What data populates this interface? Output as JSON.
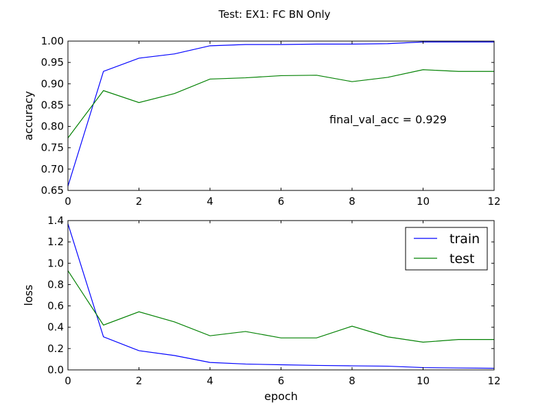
{
  "figure": {
    "title": "Test: EX1: FC BN Only"
  },
  "chart_data": [
    {
      "type": "line",
      "title": "",
      "xlabel": "",
      "ylabel": "accuracy",
      "xlim": [
        0,
        12
      ],
      "ylim": [
        0.65,
        1.0
      ],
      "xticks": [
        0,
        2,
        4,
        6,
        8,
        10,
        12
      ],
      "yticks": [
        0.65,
        0.7,
        0.75,
        0.8,
        0.85,
        0.9,
        0.95,
        1.0
      ],
      "xtick_labels": [
        "0",
        "2",
        "4",
        "6",
        "8",
        "10",
        "12"
      ],
      "ytick_labels": [
        "0.65",
        "0.70",
        "0.75",
        "0.80",
        "0.85",
        "0.90",
        "0.95",
        "1.00"
      ],
      "grid": false,
      "annotation": "final_val_acc = 0.929",
      "x": [
        0,
        1,
        2,
        3,
        4,
        5,
        6,
        7,
        8,
        9,
        10,
        11,
        12
      ],
      "series": [
        {
          "color": "#0000ff",
          "values": [
            0.66,
            0.929,
            0.96,
            0.97,
            0.989,
            0.992,
            0.992,
            0.993,
            0.993,
            0.994,
            0.998,
            0.998,
            0.998
          ]
        },
        {
          "color": "#008000",
          "values": [
            0.773,
            0.884,
            0.856,
            0.877,
            0.911,
            0.914,
            0.919,
            0.92,
            0.905,
            0.915,
            0.933,
            0.929,
            0.929
          ]
        }
      ]
    },
    {
      "type": "line",
      "title": "",
      "xlabel": "epoch",
      "ylabel": "loss",
      "xlim": [
        0,
        12
      ],
      "ylim": [
        0.0,
        1.4
      ],
      "xticks": [
        0,
        2,
        4,
        6,
        8,
        10,
        12
      ],
      "yticks": [
        0.0,
        0.2,
        0.4,
        0.6,
        0.8,
        1.0,
        1.2,
        1.4
      ],
      "xtick_labels": [
        "0",
        "2",
        "4",
        "6",
        "8",
        "10",
        "12"
      ],
      "ytick_labels": [
        "0.0",
        "0.2",
        "0.4",
        "0.6",
        "0.8",
        "1.0",
        "1.2",
        "1.4"
      ],
      "grid": false,
      "legend": "top-right",
      "x": [
        0,
        1,
        2,
        3,
        4,
        5,
        6,
        7,
        8,
        9,
        10,
        11,
        12
      ],
      "series": [
        {
          "name": "train",
          "color": "#0000ff",
          "values": [
            1.37,
            0.31,
            0.18,
            0.135,
            0.07,
            0.055,
            0.048,
            0.042,
            0.038,
            0.035,
            0.022,
            0.018,
            0.015
          ]
        },
        {
          "name": "test",
          "color": "#008000",
          "values": [
            0.93,
            0.42,
            0.545,
            0.45,
            0.32,
            0.36,
            0.3,
            0.3,
            0.41,
            0.31,
            0.26,
            0.285,
            0.285
          ]
        }
      ]
    }
  ]
}
